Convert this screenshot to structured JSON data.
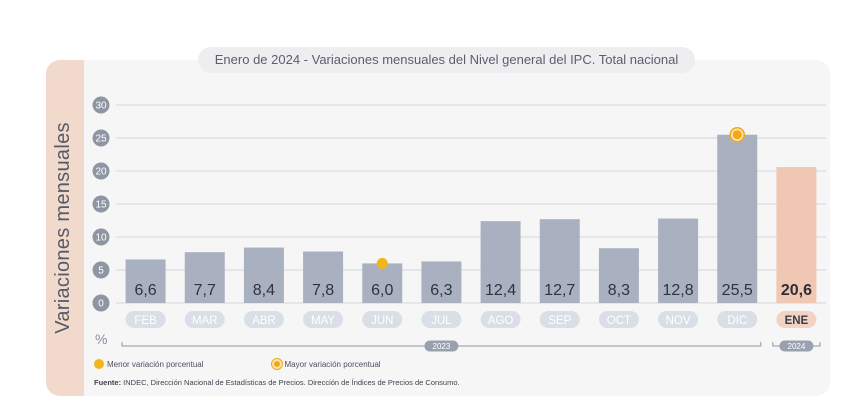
{
  "title_prefix": "Enero de 2024",
  "title_rest": " - Variaciones mensuales del Nivel general del IPC. Total nacional",
  "colors": {
    "bar": "#a9b1c0",
    "bar_highlight": "#efc7b2",
    "dot_menor": "#f2b51d",
    "dot_mayor": "#f0a818",
    "label_bg": "#d9dee7",
    "label_highlight_bg": "#f2d3c3"
  },
  "chart_data": {
    "type": "bar",
    "title": "Enero de 2024 - Variaciones mensuales del Nivel general del IPC. Total nacional",
    "ylabel": "Variaciones mensuales",
    "yunit": "%",
    "ylim": [
      0,
      30
    ],
    "yticks": [
      "0",
      "5",
      "10",
      "15",
      "20",
      "25",
      "30"
    ],
    "grid": true,
    "categories": [
      "FEB",
      "MAR",
      "ABR",
      "MAY",
      "JUN",
      "JUL",
      "AGO",
      "SEP",
      "OCT",
      "NOV",
      "DIC",
      "ENE"
    ],
    "values": [
      6.6,
      7.7,
      8.4,
      7.8,
      6.0,
      6.3,
      12.4,
      12.7,
      8.3,
      12.8,
      25.5,
      20.6
    ],
    "value_labels": [
      "6,6",
      "7,7",
      "8,4",
      "7,8",
      "6,0",
      "6,3",
      "12,4",
      "12,7",
      "8,3",
      "12,8",
      "25,5",
      "20,6"
    ],
    "highlight": "ENE",
    "markers": [
      {
        "category": "JUN",
        "type": "menor"
      },
      {
        "category": "DIC",
        "type": "mayor"
      }
    ],
    "year_groups": [
      {
        "label": "2023",
        "from": "FEB",
        "to": "DIC"
      },
      {
        "label": "2024",
        "from": "ENE",
        "to": "ENE"
      }
    ]
  },
  "legend": {
    "menor": "Menor variación porcentual",
    "mayor": "Mayor variación porcentual"
  },
  "source": {
    "label": "Fuente:",
    "text": " INDEC, Dirección Nacional de Estadísticas de Precios. Dirección de Índices de Precios de Consumo."
  }
}
